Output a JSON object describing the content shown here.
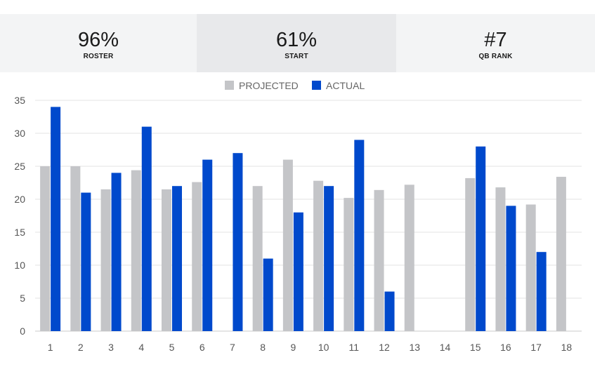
{
  "stats": [
    {
      "value": "96%",
      "label": "ROSTER"
    },
    {
      "value": "61%",
      "label": "START"
    },
    {
      "value": "#7",
      "label": "QB RANK"
    }
  ],
  "colors": {
    "projected": "#c4c5c8",
    "actual": "#0049cc",
    "grid": "#e3e3e3",
    "axis": "#c8c8c8"
  },
  "chart_data": {
    "type": "bar",
    "legend_position": "top-center",
    "grid": true,
    "ylim": [
      0,
      35
    ],
    "yticks": [
      0,
      5,
      10,
      15,
      20,
      25,
      30,
      35
    ],
    "categories": [
      "1",
      "2",
      "3",
      "4",
      "5",
      "6",
      "7",
      "8",
      "9",
      "10",
      "11",
      "12",
      "13",
      "14",
      "15",
      "16",
      "17",
      "18"
    ],
    "series": [
      {
        "name": "PROJECTED",
        "values": [
          25,
          25,
          21.5,
          24.4,
          21.5,
          22.6,
          null,
          22,
          26,
          22.8,
          20.2,
          21.4,
          22.2,
          null,
          23.2,
          21.8,
          19.2,
          23.4
        ]
      },
      {
        "name": "ACTUAL",
        "values": [
          34,
          21,
          24,
          31,
          22,
          26,
          27,
          11,
          18,
          22,
          29,
          6,
          null,
          null,
          28,
          19,
          12,
          null
        ]
      }
    ]
  }
}
